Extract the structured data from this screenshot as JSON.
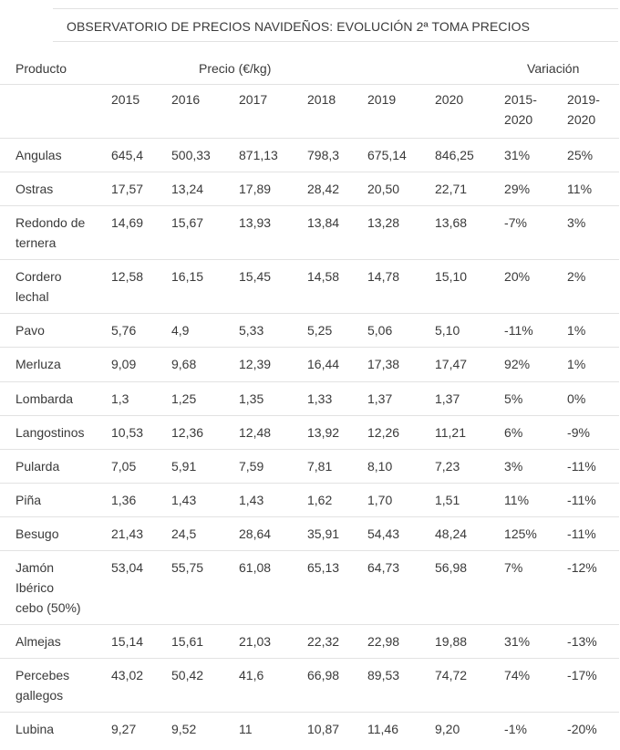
{
  "title": "OBSERVATORIO DE PRECIOS NAVIDEÑOS: EVOLUCIÓN 2ª TOMA PRECIOS",
  "header": {
    "producto": "Producto",
    "precio": "Precio (€/kg)",
    "variacion": "Variación",
    "years": [
      "2015",
      "2016",
      "2017",
      "2018",
      "2019",
      "2020"
    ],
    "var1": [
      "2015-",
      "2020"
    ],
    "var2": [
      "2019-",
      "2020"
    ]
  },
  "rows": [
    {
      "name": [
        "Angulas"
      ],
      "values": [
        "645,4",
        "500,33",
        "871,13",
        "798,3",
        "675,14",
        "846,25",
        "31%",
        "25%"
      ]
    },
    {
      "name": [
        "Ostras"
      ],
      "values": [
        "17,57",
        "13,24",
        "17,89",
        "28,42",
        "20,50",
        "22,71",
        "29%",
        "11%"
      ]
    },
    {
      "name": [
        "Redondo de",
        "ternera"
      ],
      "values": [
        "14,69",
        "15,67",
        "13,93",
        "13,84",
        "13,28",
        "13,68",
        "-7%",
        "3%"
      ]
    },
    {
      "name": [
        "Cordero",
        "lechal"
      ],
      "values": [
        "12,58",
        "16,15",
        "15,45",
        "14,58",
        "14,78",
        "15,10",
        "20%",
        "2%"
      ]
    },
    {
      "name": [
        "Pavo"
      ],
      "values": [
        "5,76",
        "4,9",
        "5,33",
        "5,25",
        "5,06",
        "5,10",
        "-11%",
        "1%"
      ]
    },
    {
      "name": [
        "Merluza"
      ],
      "values": [
        "9,09",
        "9,68",
        "12,39",
        "16,44",
        "17,38",
        "17,47",
        "92%",
        "1%"
      ]
    },
    {
      "name": [
        "Lombarda"
      ],
      "values": [
        "1,3",
        "1,25",
        "1,35",
        "1,33",
        "1,37",
        "1,37",
        "5%",
        "0%"
      ]
    },
    {
      "name": [
        "Langostinos"
      ],
      "values": [
        "10,53",
        "12,36",
        "12,48",
        "13,92",
        "12,26",
        "11,21",
        "6%",
        "-9%"
      ]
    },
    {
      "name": [
        "Pularda"
      ],
      "values": [
        "7,05",
        "5,91",
        "7,59",
        "7,81",
        "8,10",
        "7,23",
        "3%",
        "-11%"
      ]
    },
    {
      "name": [
        "Piña"
      ],
      "values": [
        "1,36",
        "1,43",
        "1,43",
        "1,62",
        "1,70",
        "1,51",
        "11%",
        "-11%"
      ]
    },
    {
      "name": [
        "Besugo"
      ],
      "values": [
        "21,43",
        "24,5",
        "28,64",
        "35,91",
        "54,43",
        "48,24",
        "125%",
        "-11%"
      ]
    },
    {
      "name": [
        "Jamón",
        "Ibérico",
        "cebo (50%)"
      ],
      "values": [
        "53,04",
        "55,75",
        "61,08",
        "65,13",
        "64,73",
        "56,98",
        "7%",
        "-12%"
      ]
    },
    {
      "name": [
        "Almejas"
      ],
      "values": [
        "15,14",
        "15,61",
        "21,03",
        "22,32",
        "22,98",
        "19,88",
        "31%",
        "-13%"
      ]
    },
    {
      "name": [
        "Percebes",
        "gallegos"
      ],
      "values": [
        "43,02",
        "50,42",
        "41,6",
        "66,98",
        "89,53",
        "74,72",
        "74%",
        "-17%"
      ]
    },
    {
      "name": [
        "Lubina"
      ],
      "values": [
        "9,27",
        "9,52",
        "11",
        "10,87",
        "11,46",
        "9,20",
        "-1%",
        "-20%"
      ]
    }
  ]
}
